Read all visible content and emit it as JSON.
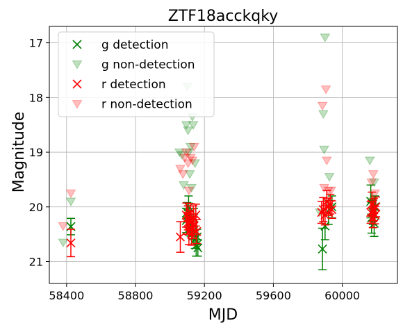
{
  "chart_data": {
    "type": "scatter",
    "title": "ZTF18acckqky",
    "xlabel": "MJD",
    "ylabel": "Magnitude",
    "xlim": [
      58300,
      60320
    ],
    "ylim": [
      21.4,
      16.7
    ],
    "y_inverted": true,
    "grid": true,
    "legend_position": "top-left",
    "xticks": [
      58400,
      58800,
      59200,
      59600,
      60000
    ],
    "yticks": [
      17,
      18,
      19,
      20,
      21
    ],
    "series": [
      {
        "name": "g detection",
        "marker": "x",
        "color": "#008000",
        "points": [
          {
            "x": 58425,
            "y": 20.36,
            "err": 0.15
          },
          {
            "x": 59095,
            "y": 20.25,
            "err": 0.22
          },
          {
            "x": 59100,
            "y": 20.1,
            "err": 0.18
          },
          {
            "x": 59108,
            "y": 20.0,
            "err": 0.2
          },
          {
            "x": 59112,
            "y": 20.3,
            "err": 0.16
          },
          {
            "x": 59118,
            "y": 20.35,
            "err": 0.18
          },
          {
            "x": 59125,
            "y": 20.4,
            "err": 0.14
          },
          {
            "x": 59132,
            "y": 20.45,
            "err": 0.15
          },
          {
            "x": 59138,
            "y": 20.2,
            "err": 0.17
          },
          {
            "x": 59145,
            "y": 20.6,
            "err": 0.16
          },
          {
            "x": 59152,
            "y": 20.7,
            "err": 0.2
          },
          {
            "x": 59158,
            "y": 20.55,
            "err": 0.14
          },
          {
            "x": 59162,
            "y": 20.75,
            "err": 0.15
          },
          {
            "x": 59885,
            "y": 20.77,
            "err": 0.38
          },
          {
            "x": 59900,
            "y": 20.35,
            "err": 0.25
          },
          {
            "x": 59920,
            "y": 20.1,
            "err": 0.22
          },
          {
            "x": 59940,
            "y": 20.0,
            "err": 0.2
          },
          {
            "x": 60165,
            "y": 19.9,
            "err": 0.3
          },
          {
            "x": 60170,
            "y": 20.2,
            "err": 0.28
          },
          {
            "x": 60178,
            "y": 20.1,
            "err": 0.22
          },
          {
            "x": 60185,
            "y": 20.3,
            "err": 0.24
          },
          {
            "x": 60190,
            "y": 20.0,
            "err": 0.2
          }
        ]
      },
      {
        "name": "g non-detection",
        "marker": "v",
        "color": "#008000",
        "points": [
          {
            "x": 58380,
            "y": 20.65
          },
          {
            "x": 58425,
            "y": 19.9
          },
          {
            "x": 59055,
            "y": 19.0
          },
          {
            "x": 59070,
            "y": 19.05
          },
          {
            "x": 59080,
            "y": 19.6
          },
          {
            "x": 59095,
            "y": 18.5
          },
          {
            "x": 59100,
            "y": 17.8
          },
          {
            "x": 59105,
            "y": 18.6
          },
          {
            "x": 59110,
            "y": 19.0
          },
          {
            "x": 59115,
            "y": 19.4
          },
          {
            "x": 59120,
            "y": 18.9
          },
          {
            "x": 59125,
            "y": 19.65
          },
          {
            "x": 59130,
            "y": 18.35
          },
          {
            "x": 59135,
            "y": 18.5
          },
          {
            "x": 59145,
            "y": 19.2
          },
          {
            "x": 59870,
            "y": 20.1
          },
          {
            "x": 59890,
            "y": 18.3
          },
          {
            "x": 59895,
            "y": 18.95
          },
          {
            "x": 59900,
            "y": 16.9
          },
          {
            "x": 59925,
            "y": 19.45
          },
          {
            "x": 59935,
            "y": 20.0
          },
          {
            "x": 60160,
            "y": 19.15
          },
          {
            "x": 60175,
            "y": 19.9
          },
          {
            "x": 60185,
            "y": 19.55
          }
        ]
      },
      {
        "name": "r detection",
        "marker": "x",
        "color": "#ff0000",
        "points": [
          {
            "x": 58425,
            "y": 20.66,
            "err": 0.25
          },
          {
            "x": 59060,
            "y": 20.55,
            "err": 0.28
          },
          {
            "x": 59095,
            "y": 20.15,
            "err": 0.22
          },
          {
            "x": 59100,
            "y": 20.3,
            "err": 0.2
          },
          {
            "x": 59105,
            "y": 20.2,
            "err": 0.22
          },
          {
            "x": 59110,
            "y": 20.45,
            "err": 0.24
          },
          {
            "x": 59115,
            "y": 20.25,
            "err": 0.18
          },
          {
            "x": 59120,
            "y": 20.1,
            "err": 0.16
          },
          {
            "x": 59125,
            "y": 20.5,
            "err": 0.2
          },
          {
            "x": 59130,
            "y": 20.4,
            "err": 0.18
          },
          {
            "x": 59135,
            "y": 20.2,
            "err": 0.22
          },
          {
            "x": 59140,
            "y": 20.35,
            "err": 0.16
          },
          {
            "x": 59150,
            "y": 20.15,
            "err": 0.2
          },
          {
            "x": 59155,
            "y": 20.45,
            "err": 0.22
          },
          {
            "x": 59880,
            "y": 20.1,
            "err": 0.2
          },
          {
            "x": 59890,
            "y": 20.05,
            "err": 0.22
          },
          {
            "x": 59900,
            "y": 20.15,
            "err": 0.18
          },
          {
            "x": 59910,
            "y": 19.9,
            "err": 0.2
          },
          {
            "x": 59920,
            "y": 20.0,
            "err": 0.16
          },
          {
            "x": 59930,
            "y": 19.95,
            "err": 0.18
          },
          {
            "x": 59940,
            "y": 20.05,
            "err": 0.16
          },
          {
            "x": 60165,
            "y": 20.1,
            "err": 0.2
          },
          {
            "x": 60172,
            "y": 19.95,
            "err": 0.22
          },
          {
            "x": 60178,
            "y": 20.2,
            "err": 0.18
          },
          {
            "x": 60183,
            "y": 20.05,
            "err": 0.2
          },
          {
            "x": 60190,
            "y": 20.15,
            "err": 0.16
          },
          {
            "x": 60195,
            "y": 20.0,
            "err": 0.18
          }
        ]
      },
      {
        "name": "r non-detection",
        "marker": "v",
        "color": "#ff0000",
        "points": [
          {
            "x": 58380,
            "y": 20.35
          },
          {
            "x": 58425,
            "y": 19.75
          },
          {
            "x": 59060,
            "y": 19.3
          },
          {
            "x": 59075,
            "y": 19.4
          },
          {
            "x": 59085,
            "y": 19.1
          },
          {
            "x": 59095,
            "y": 19.0
          },
          {
            "x": 59105,
            "y": 19.2
          },
          {
            "x": 59110,
            "y": 19.7
          },
          {
            "x": 59120,
            "y": 19.1
          },
          {
            "x": 59130,
            "y": 19.15
          },
          {
            "x": 59140,
            "y": 18.9
          },
          {
            "x": 59885,
            "y": 18.15
          },
          {
            "x": 59895,
            "y": 19.65
          },
          {
            "x": 59905,
            "y": 17.85
          },
          {
            "x": 59910,
            "y": 19.15
          },
          {
            "x": 59920,
            "y": 19.7
          },
          {
            "x": 59935,
            "y": 19.7
          },
          {
            "x": 60170,
            "y": 19.55
          },
          {
            "x": 60180,
            "y": 19.4
          },
          {
            "x": 60190,
            "y": 19.75
          }
        ]
      }
    ]
  }
}
